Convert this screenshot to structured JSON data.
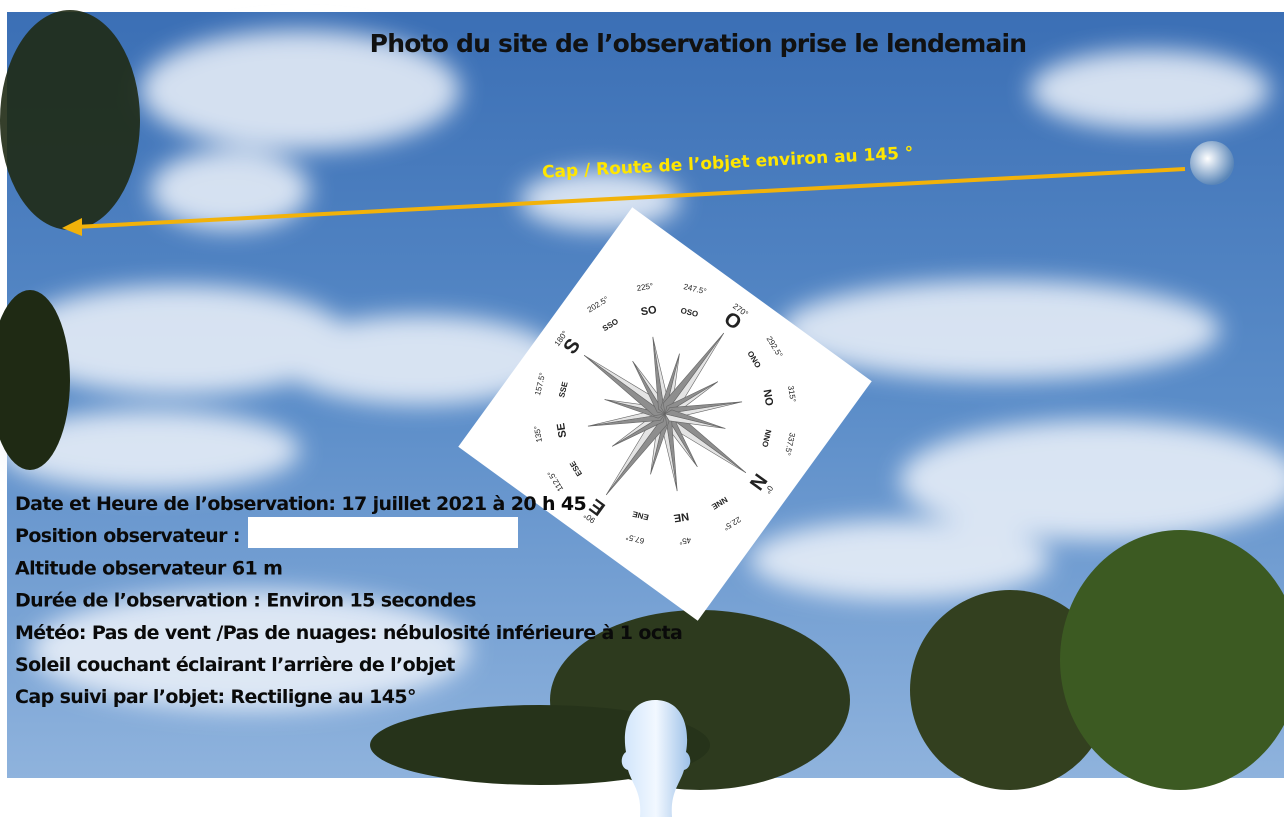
{
  "title": "Photo du site de l’observation prise le lendemain",
  "arrow_label": "Cap / Route de l’objet environ au 145 °",
  "info_lines": [
    "Date et Heure de l’observation: 17 juillet 2021 à 20 h 45",
    "Position observateur :",
    "Altitude observateur 61 m",
    "Durée de l’observation : Environ 15 secondes",
    "Météo: Pas de vent /Pas de nuages: nébulosité inférieure à 1 octa",
    "Soleil couchant éclairant l’arrière de l’objet",
    "Cap suivi par l’objet: Rectiligne au 145°"
  ],
  "compass": {
    "points": [
      {
        "label": "N",
        "degrees": "0°"
      },
      {
        "label": "NNE",
        "degrees": "22.5°"
      },
      {
        "label": "NE",
        "degrees": "45°"
      },
      {
        "label": "ENE",
        "degrees": "67.5°"
      },
      {
        "label": "E",
        "degrees": "90°"
      },
      {
        "label": "ESE",
        "degrees": "112.5°"
      },
      {
        "label": "SE",
        "degrees": "135°"
      },
      {
        "label": "SSE",
        "degrees": "157.5°"
      },
      {
        "label": "S",
        "degrees": "180°"
      },
      {
        "label": "SSO",
        "degrees": "202.5°"
      },
      {
        "label": "SO",
        "degrees": "225°"
      },
      {
        "label": "OSO",
        "degrees": "247.5°"
      },
      {
        "label": "O",
        "degrees": "270°"
      },
      {
        "label": "ONO",
        "degrees": "292.5°"
      },
      {
        "label": "NO",
        "degrees": "315°"
      },
      {
        "label": "NNO",
        "degrees": "337.5°"
      }
    ]
  }
}
